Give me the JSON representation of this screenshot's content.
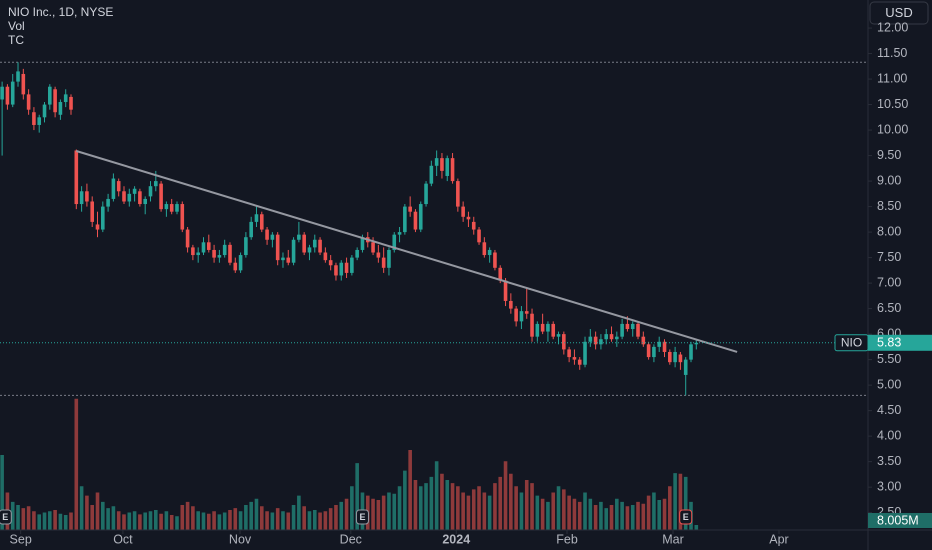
{
  "chart_data": {
    "type": "candlestick",
    "title": "NIO Inc., 1D, NYSE",
    "indicators": [
      "Vol",
      "TC"
    ],
    "currency": "USD",
    "symbol": "NIO",
    "last_price": 5.83,
    "last_volume_label": "8.005M",
    "up_color": "#26a69a",
    "down_color": "#ef5350",
    "up_volume_color": "#1f6e67",
    "down_volume_color": "#8e3a3b",
    "trend_color": "#9598a1",
    "xlim": [
      -0.4,
      163.4
    ],
    "ylim": [
      2.16,
      12.55
    ],
    "vlim": [
      0,
      848
    ],
    "xticks": [
      {
        "value": 3.5,
        "label": "Sep"
      },
      {
        "value": 22.8,
        "label": "Oct"
      },
      {
        "value": 44.9,
        "label": "Nov"
      },
      {
        "value": 65.8,
        "label": "Dec"
      },
      {
        "value": 85.7,
        "label": "2024"
      },
      {
        "value": 106.6,
        "label": "Feb"
      },
      {
        "value": 126.6,
        "label": "Mar"
      },
      {
        "value": 146.6,
        "label": "Apr"
      }
    ],
    "yticks": [
      {
        "value": 2.5,
        "label": "2.50"
      },
      {
        "value": 3,
        "label": "3.00"
      },
      {
        "value": 3.5,
        "label": "3.50"
      },
      {
        "value": 4,
        "label": "4.00"
      },
      {
        "value": 4.5,
        "label": "4.50"
      },
      {
        "value": 5,
        "label": "5.00"
      },
      {
        "value": 5.5,
        "label": "5.50"
      },
      {
        "value": 6,
        "label": "6.00"
      },
      {
        "value": 6.5,
        "label": "6.50"
      },
      {
        "value": 7,
        "label": "7.00"
      },
      {
        "value": 7.5,
        "label": "7.50"
      },
      {
        "value": 8,
        "label": "8.00"
      },
      {
        "value": 8.5,
        "label": "8.50"
      },
      {
        "value": 9,
        "label": "9.00"
      },
      {
        "value": 9.5,
        "label": "9.50"
      },
      {
        "value": 10,
        "label": "10.00"
      },
      {
        "value": 10.5,
        "label": "10.50"
      },
      {
        "value": 11,
        "label": "11.00"
      },
      {
        "value": 11.5,
        "label": "11.50"
      },
      {
        "value": 12,
        "label": "12.00"
      }
    ],
    "ohlc": [
      [
        10.6,
        10.95,
        9.5,
        10.85
      ],
      [
        10.85,
        10.9,
        10.4,
        10.5
      ],
      [
        10.5,
        11.1,
        10.45,
        10.95
      ],
      [
        10.95,
        11.33,
        10.85,
        11.15
      ],
      [
        11.1,
        11.2,
        10.6,
        10.7
      ],
      [
        10.7,
        10.8,
        10.3,
        10.4
      ],
      [
        10.35,
        10.45,
        10.0,
        10.1
      ],
      [
        10.1,
        10.3,
        9.95,
        10.25
      ],
      [
        10.25,
        10.55,
        10.15,
        10.5
      ],
      [
        10.5,
        10.9,
        10.4,
        10.85
      ],
      [
        10.8,
        10.85,
        10.25,
        10.35
      ],
      [
        10.3,
        10.6,
        10.2,
        10.55
      ],
      [
        10.55,
        10.8,
        10.45,
        10.7
      ],
      [
        10.65,
        10.7,
        10.3,
        10.4
      ],
      [
        9.6,
        9.62,
        8.45,
        8.55
      ],
      [
        8.55,
        8.9,
        8.4,
        8.8
      ],
      [
        8.8,
        8.95,
        8.5,
        8.6
      ],
      [
        8.6,
        8.7,
        8.1,
        8.2
      ],
      [
        8.15,
        8.4,
        7.9,
        8.05
      ],
      [
        8.05,
        8.6,
        8.0,
        8.5
      ],
      [
        8.5,
        8.75,
        8.4,
        8.65
      ],
      [
        8.65,
        9.15,
        8.6,
        9.05
      ],
      [
        9.0,
        9.05,
        8.7,
        8.8
      ],
      [
        8.8,
        8.9,
        8.55,
        8.6
      ],
      [
        8.6,
        8.85,
        8.5,
        8.75
      ],
      [
        8.75,
        8.9,
        8.6,
        8.85
      ],
      [
        8.8,
        8.85,
        8.5,
        8.55
      ],
      [
        8.55,
        8.7,
        8.35,
        8.65
      ],
      [
        8.7,
        9.0,
        8.6,
        8.9
      ],
      [
        8.9,
        9.2,
        8.8,
        9.0
      ],
      [
        8.95,
        9.0,
        8.4,
        8.45
      ],
      [
        8.45,
        8.6,
        8.3,
        8.55
      ],
      [
        8.55,
        8.65,
        8.35,
        8.4
      ],
      [
        8.4,
        8.6,
        8.35,
        8.55
      ],
      [
        8.55,
        8.6,
        8.0,
        8.05
      ],
      [
        8.05,
        8.1,
        7.6,
        7.7
      ],
      [
        7.7,
        7.75,
        7.45,
        7.55
      ],
      [
        7.55,
        7.7,
        7.4,
        7.6
      ],
      [
        7.6,
        7.9,
        7.55,
        7.8
      ],
      [
        7.8,
        7.95,
        7.6,
        7.65
      ],
      [
        7.65,
        7.75,
        7.4,
        7.5
      ],
      [
        7.5,
        7.65,
        7.4,
        7.55
      ],
      [
        7.55,
        7.85,
        7.5,
        7.75
      ],
      [
        7.75,
        7.8,
        7.35,
        7.4
      ],
      [
        7.4,
        7.5,
        7.2,
        7.25
      ],
      [
        7.25,
        7.6,
        7.2,
        7.55
      ],
      [
        7.55,
        8.0,
        7.5,
        7.9
      ],
      [
        7.9,
        8.3,
        7.85,
        8.2
      ],
      [
        8.2,
        8.5,
        8.1,
        8.35
      ],
      [
        8.35,
        8.4,
        8.0,
        8.05
      ],
      [
        8.05,
        8.1,
        7.75,
        7.85
      ],
      [
        7.85,
        8.0,
        7.7,
        7.95
      ],
      [
        7.95,
        8.0,
        7.35,
        7.45
      ],
      [
        7.45,
        7.6,
        7.3,
        7.5
      ],
      [
        7.5,
        7.65,
        7.35,
        7.4
      ],
      [
        7.4,
        7.9,
        7.35,
        7.85
      ],
      [
        7.85,
        8.2,
        7.8,
        7.95
      ],
      [
        7.95,
        8.0,
        7.55,
        7.6
      ],
      [
        7.6,
        7.75,
        7.45,
        7.7
      ],
      [
        7.7,
        7.95,
        7.6,
        7.85
      ],
      [
        7.85,
        7.9,
        7.55,
        7.6
      ],
      [
        7.6,
        7.7,
        7.4,
        7.45
      ],
      [
        7.45,
        7.55,
        7.25,
        7.35
      ],
      [
        7.35,
        7.4,
        7.05,
        7.15
      ],
      [
        7.15,
        7.45,
        7.05,
        7.4
      ],
      [
        7.4,
        7.5,
        7.1,
        7.2
      ],
      [
        7.2,
        7.55,
        7.15,
        7.5
      ],
      [
        7.5,
        7.7,
        7.45,
        7.65
      ],
      [
        7.65,
        7.95,
        7.6,
        7.9
      ],
      [
        7.9,
        8.0,
        7.7,
        7.8
      ],
      [
        7.8,
        7.9,
        7.55,
        7.6
      ],
      [
        7.6,
        7.75,
        7.4,
        7.5
      ],
      [
        7.5,
        7.7,
        7.2,
        7.3
      ],
      [
        7.3,
        7.7,
        7.15,
        7.65
      ],
      [
        7.65,
        8.0,
        7.6,
        7.95
      ],
      [
        7.95,
        8.1,
        7.8,
        8.0
      ],
      [
        8.0,
        8.55,
        7.95,
        8.5
      ],
      [
        8.5,
        8.7,
        8.3,
        8.4
      ],
      [
        8.4,
        8.45,
        8.0,
        8.05
      ],
      [
        8.05,
        8.6,
        8.0,
        8.55
      ],
      [
        8.55,
        9.0,
        8.5,
        8.95
      ],
      [
        8.95,
        9.4,
        8.9,
        9.3
      ],
      [
        9.3,
        9.6,
        9.1,
        9.45
      ],
      [
        9.45,
        9.55,
        9.05,
        9.2
      ],
      [
        9.1,
        9.5,
        9.0,
        9.45
      ],
      [
        9.45,
        9.55,
        8.95,
        9.0
      ],
      [
        9.0,
        9.05,
        8.4,
        8.5
      ],
      [
        8.5,
        8.6,
        8.2,
        8.3
      ],
      [
        8.3,
        8.4,
        8.1,
        8.25
      ],
      [
        8.2,
        8.3,
        7.95,
        8.05
      ],
      [
        8.05,
        8.1,
        7.75,
        7.8
      ],
      [
        7.8,
        7.9,
        7.5,
        7.55
      ],
      [
        7.55,
        7.7,
        7.4,
        7.65
      ],
      [
        7.6,
        7.65,
        7.25,
        7.3
      ],
      [
        7.3,
        7.35,
        7.0,
        7.05
      ],
      [
        7.05,
        7.1,
        6.55,
        6.65
      ],
      [
        6.65,
        6.8,
        6.4,
        6.5
      ],
      [
        6.5,
        6.55,
        6.15,
        6.25
      ],
      [
        6.25,
        6.55,
        6.1,
        6.45
      ],
      [
        6.45,
        6.9,
        6.3,
        6.4
      ],
      [
        6.4,
        6.5,
        5.85,
        5.95
      ],
      [
        5.95,
        6.25,
        5.85,
        6.2
      ],
      [
        6.2,
        6.4,
        6.0,
        6.05
      ],
      [
        6.05,
        6.25,
        5.85,
        6.2
      ],
      [
        6.2,
        6.25,
        5.9,
        5.95
      ],
      [
        5.95,
        6.05,
        5.8,
        6.0
      ],
      [
        6.0,
        6.05,
        5.6,
        5.7
      ],
      [
        5.7,
        5.75,
        5.45,
        5.55
      ],
      [
        5.55,
        5.7,
        5.4,
        5.5
      ],
      [
        5.5,
        5.55,
        5.3,
        5.4
      ],
      [
        5.4,
        5.95,
        5.35,
        5.85
      ],
      [
        5.85,
        6.1,
        5.75,
        5.95
      ],
      [
        5.95,
        6.05,
        5.7,
        5.8
      ],
      [
        5.8,
        6.0,
        5.7,
        5.9
      ],
      [
        5.9,
        6.1,
        5.8,
        6.0
      ],
      [
        6.0,
        6.15,
        5.85,
        5.9
      ],
      [
        5.9,
        6.05,
        5.75,
        5.95
      ],
      [
        5.95,
        6.3,
        5.9,
        6.2
      ],
      [
        6.2,
        6.35,
        6.05,
        6.1
      ],
      [
        6.1,
        6.25,
        5.95,
        6.2
      ],
      [
        6.2,
        6.25,
        5.9,
        5.95
      ],
      [
        5.95,
        6.05,
        5.75,
        5.8
      ],
      [
        5.8,
        5.85,
        5.5,
        5.55
      ],
      [
        5.55,
        5.8,
        5.45,
        5.75
      ],
      [
        5.75,
        5.95,
        5.65,
        5.85
      ],
      [
        5.85,
        5.9,
        5.55,
        5.65
      ],
      [
        5.65,
        5.7,
        5.4,
        5.45
      ],
      [
        5.45,
        5.75,
        5.35,
        5.65
      ],
      [
        5.6,
        5.65,
        5.3,
        5.45
      ],
      [
        5.2,
        5.55,
        4.8,
        5.5
      ],
      [
        5.5,
        5.85,
        5.45,
        5.8
      ],
      [
        5.8,
        5.9,
        5.7,
        5.83
      ]
    ],
    "volume": [
      120,
      60,
      45,
      40,
      35,
      38,
      30,
      25,
      28,
      30,
      32,
      26,
      24,
      28,
      210,
      70,
      55,
      40,
      60,
      45,
      35,
      38,
      30,
      25,
      28,
      30,
      25,
      28,
      30,
      32,
      26,
      30,
      24,
      22,
      40,
      45,
      38,
      30,
      28,
      26,
      30,
      25,
      28,
      32,
      35,
      30,
      40,
      45,
      50,
      38,
      30,
      28,
      35,
      30,
      28,
      40,
      55,
      38,
      30,
      32,
      28,
      30,
      35,
      40,
      45,
      50,
      70,
      107,
      60,
      55,
      50,
      48,
      55,
      60,
      58,
      70,
      95,
      128,
      80,
      70,
      75,
      85,
      110,
      90,
      80,
      75,
      70,
      60,
      55,
      65,
      70,
      60,
      55,
      75,
      85,
      110,
      90,
      70,
      60,
      80,
      75,
      55,
      50,
      45,
      60,
      70,
      65,
      55,
      50,
      45,
      60,
      50,
      40,
      45,
      35,
      40,
      50,
      45,
      38,
      40,
      45,
      42,
      55,
      60,
      48,
      50,
      70,
      91,
      90,
      85,
      45,
      8.005
    ],
    "trendline": {
      "x": [
        14,
        138.7
      ],
      "y": [
        9.59,
        5.65
      ]
    },
    "earnings": [
      {
        "x": 0.6,
        "label": "E"
      },
      {
        "x": 68,
        "label": "E"
      },
      {
        "x": 129,
        "label": "E"
      }
    ]
  }
}
